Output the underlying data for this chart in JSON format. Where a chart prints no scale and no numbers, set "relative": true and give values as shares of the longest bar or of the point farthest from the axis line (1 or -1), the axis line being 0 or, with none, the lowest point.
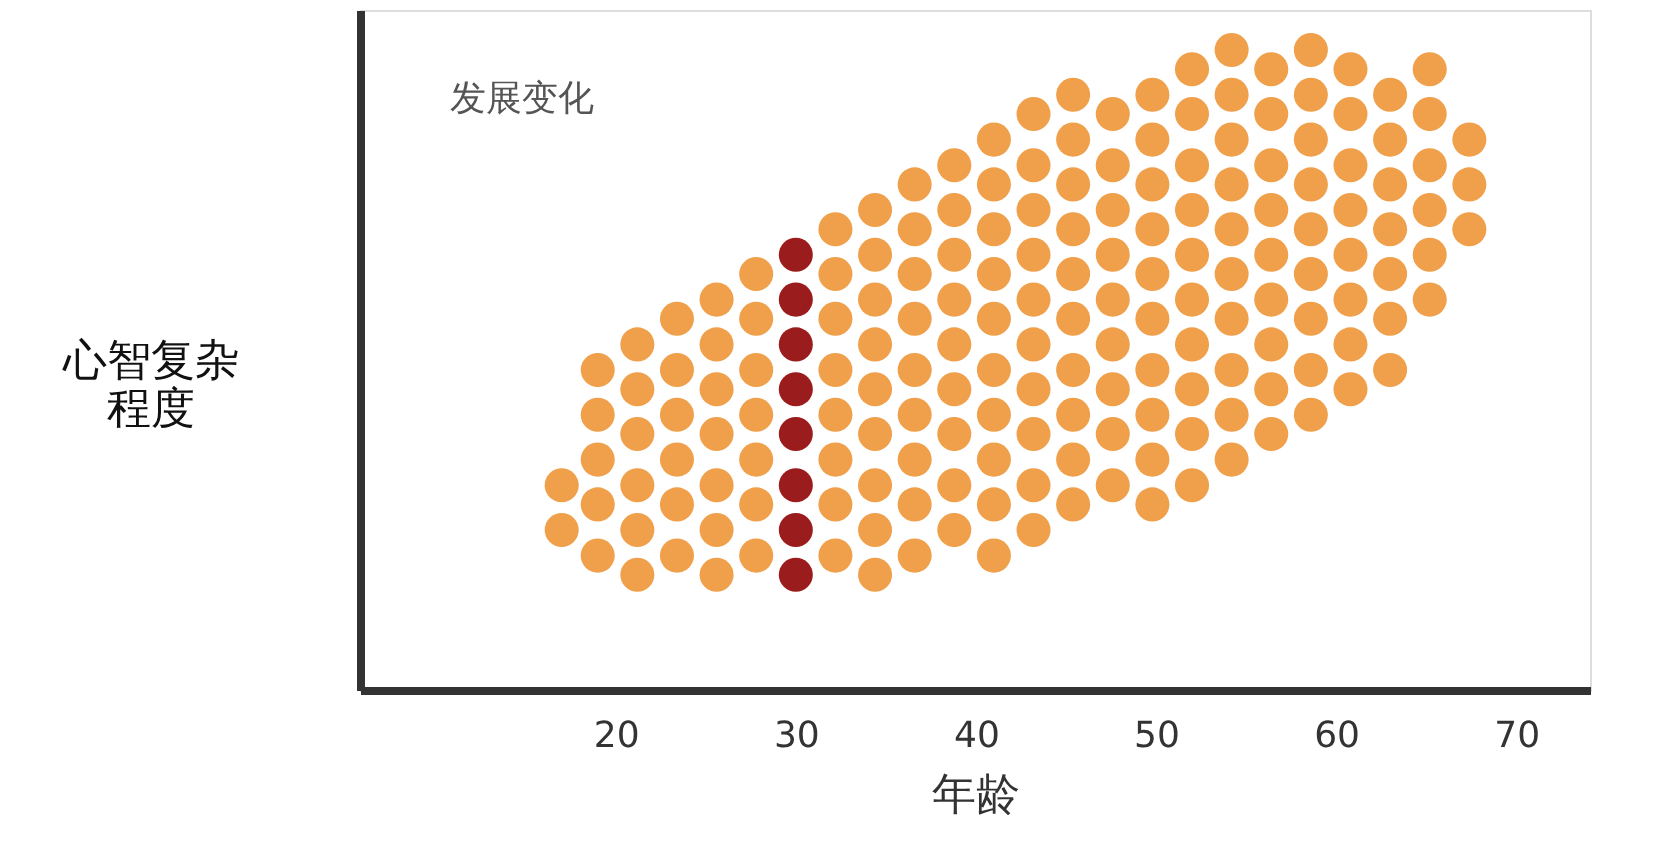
{
  "chart_data": {
    "type": "scatter",
    "relative": true,
    "xlabel": "年龄",
    "ylabel": "心智复杂程度",
    "annotations": [
      "发展变化"
    ],
    "xlim": [
      5.8,
      74.1
    ],
    "xticks": [
      20,
      30,
      40,
      50,
      60,
      70
    ],
    "tick_labels": "x",
    "grid": false,
    "marker": "circle",
    "series": [
      {
        "color": "#f0a04b",
        "x": [
          17,
          17,
          19,
          19,
          19,
          19,
          19,
          21.2,
          21.2,
          21.2,
          21.2,
          21.2,
          21.2,
          23.4,
          23.4,
          23.4,
          23.4,
          23.4,
          23.4,
          25.6,
          25.6,
          25.6,
          25.6,
          25.6,
          25.6,
          25.6,
          27.8,
          27.8,
          27.8,
          27.8,
          27.8,
          27.8,
          27.8,
          32.2,
          32.2,
          32.2,
          32.2,
          32.2,
          32.2,
          32.2,
          32.2,
          34.4,
          34.4,
          34.4,
          34.4,
          34.4,
          34.4,
          34.4,
          34.4,
          34.4,
          36.6,
          36.6,
          36.6,
          36.6,
          36.6,
          36.6,
          36.6,
          36.6,
          36.6,
          38.8,
          38.8,
          38.8,
          38.8,
          38.8,
          38.8,
          38.8,
          38.8,
          38.8,
          41,
          41,
          41,
          41,
          41,
          41,
          41,
          41,
          41,
          41,
          43.2,
          43.2,
          43.2,
          43.2,
          43.2,
          43.2,
          43.2,
          43.2,
          43.2,
          43.2,
          45.4,
          45.4,
          45.4,
          45.4,
          45.4,
          45.4,
          45.4,
          45.4,
          45.4,
          45.4,
          47.6,
          47.6,
          47.6,
          47.6,
          47.6,
          47.6,
          47.6,
          47.6,
          47.6,
          49.8,
          49.8,
          49.8,
          49.8,
          49.8,
          49.8,
          49.8,
          49.8,
          49.8,
          49.8,
          52,
          52,
          52,
          52,
          52,
          52,
          52,
          52,
          52,
          52,
          54.2,
          54.2,
          54.2,
          54.2,
          54.2,
          54.2,
          54.2,
          54.2,
          54.2,
          54.2,
          56.4,
          56.4,
          56.4,
          56.4,
          56.4,
          56.4,
          56.4,
          56.4,
          56.4,
          58.6,
          58.6,
          58.6,
          58.6,
          58.6,
          58.6,
          58.6,
          58.6,
          58.6,
          60.8,
          60.8,
          60.8,
          60.8,
          60.8,
          60.8,
          60.8,
          60.8,
          63,
          63,
          63,
          63,
          63,
          63,
          63,
          65.2,
          65.2,
          65.2,
          65.2,
          65.2,
          65.2,
          67.4,
          67.4,
          67.4
        ],
        "values": [
          0.25,
          0.32,
          0.21,
          0.29,
          0.36,
          0.43,
          0.5,
          0.18,
          0.25,
          0.32,
          0.4,
          0.47,
          0.54,
          0.21,
          0.29,
          0.36,
          0.43,
          0.5,
          0.58,
          0.18,
          0.25,
          0.32,
          0.4,
          0.47,
          0.54,
          0.61,
          0.21,
          0.29,
          0.36,
          0.43,
          0.5,
          0.58,
          0.65,
          0.21,
          0.29,
          0.36,
          0.43,
          0.5,
          0.58,
          0.65,
          0.72,
          0.18,
          0.25,
          0.32,
          0.4,
          0.47,
          0.54,
          0.61,
          0.68,
          0.75,
          0.21,
          0.29,
          0.36,
          0.43,
          0.5,
          0.58,
          0.65,
          0.72,
          0.79,
          0.25,
          0.32,
          0.4,
          0.47,
          0.54,
          0.61,
          0.68,
          0.75,
          0.82,
          0.21,
          0.29,
          0.36,
          0.43,
          0.5,
          0.58,
          0.65,
          0.72,
          0.79,
          0.86,
          0.25,
          0.32,
          0.4,
          0.47,
          0.54,
          0.61,
          0.68,
          0.75,
          0.82,
          0.9,
          0.29,
          0.36,
          0.43,
          0.5,
          0.58,
          0.65,
          0.72,
          0.79,
          0.86,
          0.93,
          0.32,
          0.4,
          0.47,
          0.54,
          0.61,
          0.68,
          0.75,
          0.82,
          0.9,
          0.29,
          0.36,
          0.43,
          0.5,
          0.58,
          0.65,
          0.72,
          0.79,
          0.86,
          0.93,
          0.32,
          0.4,
          0.47,
          0.54,
          0.61,
          0.68,
          0.75,
          0.82,
          0.9,
          0.97,
          0.36,
          0.43,
          0.5,
          0.58,
          0.65,
          0.72,
          0.79,
          0.86,
          0.93,
          1.0,
          0.4,
          0.47,
          0.54,
          0.61,
          0.68,
          0.75,
          0.82,
          0.9,
          0.97,
          0.43,
          0.5,
          0.58,
          0.65,
          0.72,
          0.79,
          0.86,
          0.93,
          1.0,
          0.47,
          0.54,
          0.61,
          0.68,
          0.75,
          0.82,
          0.9,
          0.97,
          0.5,
          0.58,
          0.65,
          0.72,
          0.79,
          0.86,
          0.93,
          0.61,
          0.68,
          0.75,
          0.82,
          0.9,
          0.97,
          0.72,
          0.79,
          0.86
        ]
      },
      {
        "color": "#9b1c1c",
        "x": [
          30,
          30,
          30,
          30,
          30,
          30,
          30,
          30
        ],
        "values": [
          0.18,
          0.25,
          0.32,
          0.4,
          0.47,
          0.54,
          0.61,
          0.68
        ]
      }
    ]
  }
}
